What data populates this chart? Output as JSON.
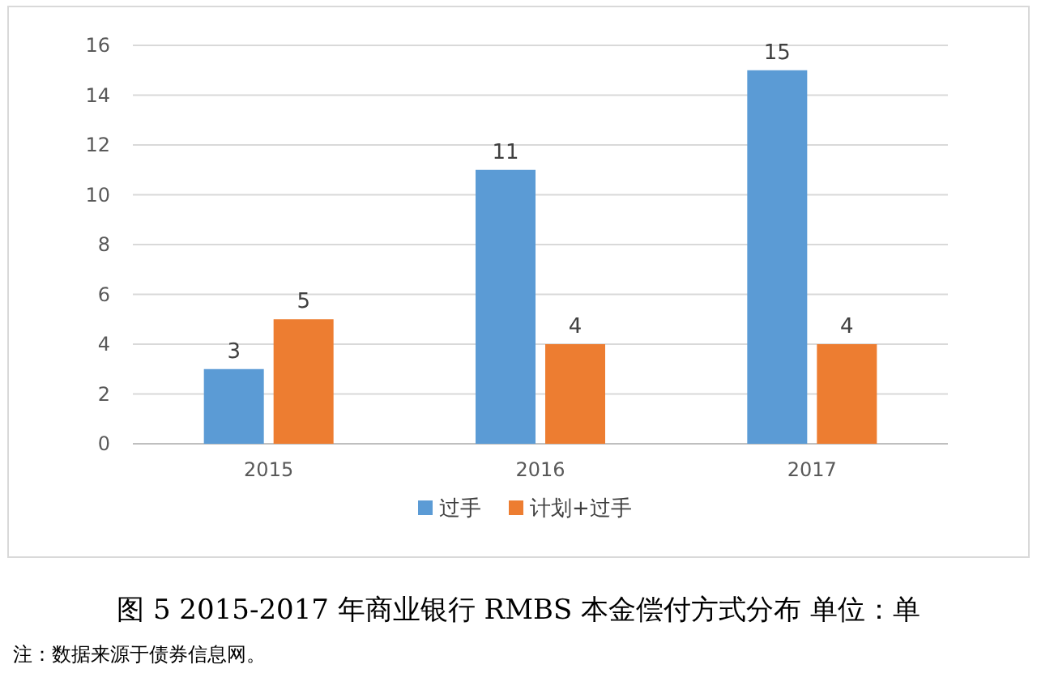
{
  "chart_data": {
    "type": "bar",
    "title": "图 5  2015-2017 年商业银行 RMBS 本金偿付方式分布  单位：单",
    "categories": [
      "2015",
      "2016",
      "2017"
    ],
    "series": [
      {
        "name": "过手",
        "color": "#5b9bd5",
        "values": [
          3,
          11,
          15
        ]
      },
      {
        "name": "计划+过手",
        "color": "#ed7d31",
        "values": [
          5,
          4,
          4
        ]
      }
    ],
    "ylim": [
      0,
      16
    ],
    "yticks": [
      0,
      2,
      4,
      6,
      8,
      10,
      12,
      14,
      16
    ],
    "grid": "y",
    "legend": "bottom",
    "data_labels": true,
    "annotations": [
      "注：数据来源于债券信息网。"
    ]
  }
}
